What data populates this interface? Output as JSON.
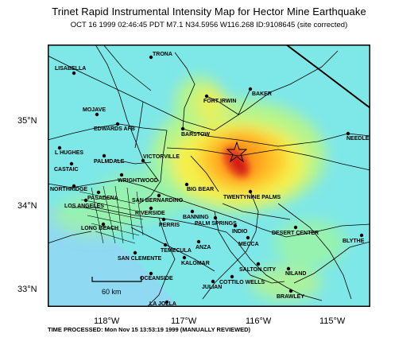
{
  "title": "Trinet Rapid Instrumental Intensity Map for Hector Mine Earthquake",
  "subtitle": "OCT 16 1999 02:46:45 PDT M7.1 N34.5956 W116.268 ID:9108645 (site corrected)",
  "footer": "TIME PROCESSED: Mon Nov 15 13:53:19 1999 (MANUALLY REVIEWED)",
  "lat_labels": [
    "35°N",
    "34°N",
    "33°N"
  ],
  "lon_labels": [
    "118°W",
    "117°W",
    "116°W",
    "115°W"
  ],
  "scale_bar_label": "60 km",
  "colors": {
    "background": "#7ee7e8",
    "intensity_low": "#9ef5a0",
    "intensity_mid": "#f4f04a",
    "intensity_high": "#ff9a1a",
    "intensity_peak": "#d21414",
    "ocean": "#8fd9f2"
  },
  "epicenter": {
    "lat": 34.5956,
    "lon": -116.268,
    "icon": "star-icon"
  },
  "cities": [
    "TRONA",
    "LISABELLA",
    "BAKER",
    "FORT IRWIN",
    "MOJAVE",
    "EDWARDS AFB",
    "BARSTOW",
    "NEEDLES",
    "L HUGHES",
    "PALMDALE",
    "VICTORVILLE",
    "CASTAIC",
    "WRIGHTWOOD",
    "NORTHRIDGE",
    "BIG BEAR",
    "TWENTYNINE PALMS",
    "PASADENA",
    "LOS ANGELES",
    "SAN BERNARDINO",
    "RIVERSIDE",
    "BANNING",
    "PALM SPRINGS",
    "INDIO",
    "DESERT CENTER",
    "BLYTHE",
    "LONG BEACH",
    "PERRIS",
    "MECCA",
    "TEMECULA",
    "ANZA",
    "SAN CLEMENTE",
    "KALOMAR",
    "SALTON CITY",
    "NILAND",
    "OCEANSIDE",
    "COTTILO WELLS",
    "JULIAN",
    "BRAWLEY",
    "LA JOLLA",
    "GYPSUM"
  ]
}
